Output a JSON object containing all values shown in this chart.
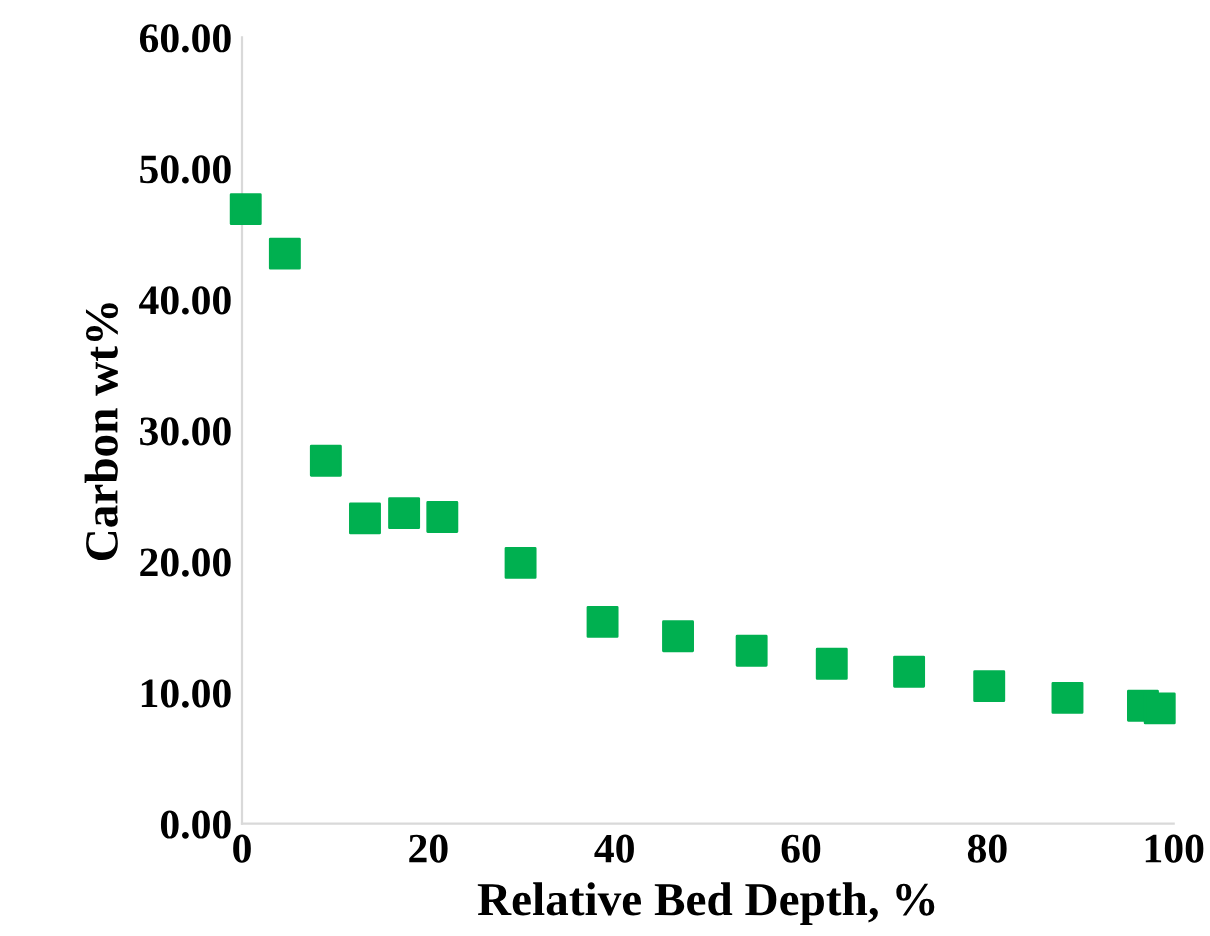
{
  "chart_data": {
    "type": "scatter",
    "xlabel": "Relative Bed Depth, %",
    "ylabel": "Carbon wt%",
    "x": [
      0.4,
      4.6,
      9,
      13.2,
      17.4,
      21.5,
      29.9,
      38.7,
      46.8,
      54.7,
      63.3,
      71.6,
      80.2,
      88.6,
      96.7,
      98.5
    ],
    "series": [
      {
        "color": "#00b050",
        "values": [
          46.9,
          43.5,
          27.7,
          23.3,
          23.7,
          23.4,
          19.9,
          15.4,
          14.3,
          13.2,
          12.2,
          11.6,
          10.5,
          9.6,
          9.0,
          8.8
        ]
      }
    ],
    "xlim": [
      0,
      100
    ],
    "ylim": [
      0,
      60
    ],
    "xticks": [
      0,
      20,
      40,
      60,
      80,
      100
    ],
    "yticks": [
      {
        "value": 0,
        "label": "0.00"
      },
      {
        "value": 10,
        "label": "10.00"
      },
      {
        "value": 20,
        "label": "20.00"
      },
      {
        "value": 30,
        "label": "30.00"
      },
      {
        "value": 40,
        "label": "40.00"
      },
      {
        "value": 50,
        "label": "50.00"
      },
      {
        "value": 60,
        "label": "60.00"
      }
    ],
    "grid": false,
    "marker": "square"
  }
}
